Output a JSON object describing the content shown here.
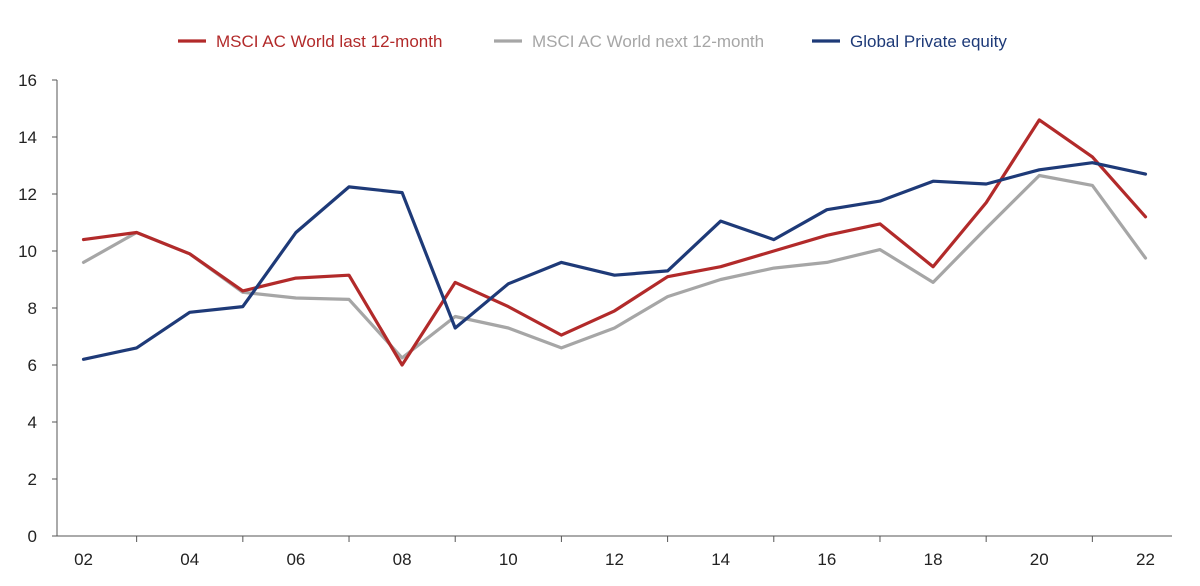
{
  "chart_data": {
    "type": "line",
    "title": "",
    "xlabel": "",
    "ylabel": "",
    "x": [
      2002,
      2003,
      2004,
      2005,
      2006,
      2007,
      2008,
      2009,
      2010,
      2011,
      2012,
      2013,
      2014,
      2015,
      2016,
      2017,
      2018,
      2019,
      2020,
      2021,
      2022
    ],
    "x_tick_values": [
      2002,
      2004,
      2006,
      2008,
      2010,
      2012,
      2014,
      2016,
      2018,
      2020,
      2022
    ],
    "x_tick_labels": [
      "02",
      "04",
      "06",
      "08",
      "10",
      "12",
      "14",
      "16",
      "18",
      "20",
      "22"
    ],
    "xlim": [
      2001.5,
      2022.5
    ],
    "ylim": [
      0,
      16
    ],
    "y_ticks": [
      0,
      2,
      4,
      6,
      8,
      10,
      12,
      14,
      16
    ],
    "grid": false,
    "legend_position": "top-center",
    "series": [
      {
        "name": "MSCI AC World last 12-month",
        "color": "#b22a2a",
        "values": [
          10.4,
          10.65,
          9.9,
          8.6,
          9.05,
          9.15,
          6.0,
          8.9,
          8.05,
          7.05,
          7.9,
          9.1,
          9.45,
          10.0,
          10.55,
          10.95,
          9.45,
          11.7,
          14.6,
          13.3,
          11.2
        ]
      },
      {
        "name": "MSCI AC World next 12-month",
        "color": "#a6a6a6",
        "values": [
          9.6,
          10.65,
          9.9,
          8.55,
          8.35,
          8.3,
          6.25,
          7.7,
          7.3,
          6.6,
          7.3,
          8.4,
          9.0,
          9.4,
          9.6,
          10.05,
          8.9,
          10.8,
          12.65,
          12.3,
          9.75
        ]
      },
      {
        "name": "Global Private equity",
        "color": "#1e3a78",
        "values": [
          6.2,
          6.6,
          7.85,
          8.05,
          10.65,
          12.25,
          12.05,
          7.3,
          8.85,
          9.6,
          9.15,
          9.3,
          11.05,
          10.4,
          11.45,
          11.75,
          12.45,
          12.35,
          12.85,
          13.1,
          12.7
        ]
      }
    ]
  }
}
